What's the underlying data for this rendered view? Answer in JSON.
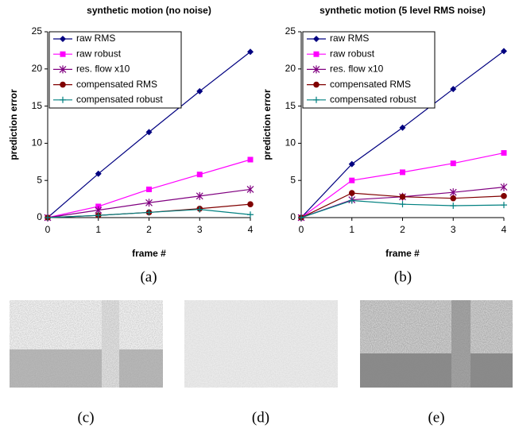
{
  "chart_data": [
    {
      "type": "line",
      "title": "synthetic motion (no noise)",
      "x_label": "frame #",
      "y_label": "prediction error",
      "x": [
        0,
        1,
        2,
        3,
        4
      ],
      "xlim": [
        0,
        4
      ],
      "xticks": [
        0,
        1,
        2,
        3,
        4
      ],
      "ylim": [
        0,
        25
      ],
      "yticks": [
        0,
        5,
        10,
        15,
        20,
        25
      ],
      "grid": false,
      "legend": "upper left",
      "series": [
        {
          "name": "raw RMS",
          "color": "#000080",
          "marker": "diamond",
          "values": [
            0,
            5.9,
            11.5,
            17.0,
            22.3
          ]
        },
        {
          "name": "raw robust",
          "color": "#ff00ff",
          "marker": "square",
          "values": [
            0,
            1.5,
            3.8,
            5.8,
            7.8
          ]
        },
        {
          "name": "res. flow x10",
          "color": "#800080",
          "marker": "star",
          "values": [
            0,
            1.0,
            2.0,
            2.9,
            3.8
          ]
        },
        {
          "name": "compensated RMS",
          "color": "#800000",
          "marker": "circle",
          "values": [
            0,
            0.3,
            0.7,
            1.2,
            1.8
          ]
        },
        {
          "name": "compensated robust",
          "color": "#008080",
          "marker": "plus",
          "values": [
            0,
            0.3,
            0.7,
            1.1,
            0.4
          ]
        }
      ]
    },
    {
      "type": "line",
      "title": "synthetic motion (5 level RMS noise)",
      "x_label": "frame #",
      "y_label": "prediction error",
      "x": [
        0,
        1,
        2,
        3,
        4
      ],
      "xlim": [
        0,
        4
      ],
      "xticks": [
        0,
        1,
        2,
        3,
        4
      ],
      "ylim": [
        0,
        25
      ],
      "yticks": [
        0,
        5,
        10,
        15,
        20,
        25
      ],
      "grid": false,
      "legend": "upper left",
      "series": [
        {
          "name": "raw RMS",
          "color": "#000080",
          "marker": "diamond",
          "values": [
            0,
            7.2,
            12.1,
            17.3,
            22.4
          ]
        },
        {
          "name": "raw robust",
          "color": "#ff00ff",
          "marker": "square",
          "values": [
            0,
            5.0,
            6.1,
            7.3,
            8.7
          ]
        },
        {
          "name": "res. flow x10",
          "color": "#800080",
          "marker": "star",
          "values": [
            0,
            2.4,
            2.8,
            3.4,
            4.1
          ]
        },
        {
          "name": "compensated RMS",
          "color": "#800000",
          "marker": "circle",
          "values": [
            0,
            3.3,
            2.8,
            2.6,
            2.9
          ]
        },
        {
          "name": "compensated robust",
          "color": "#008080",
          "marker": "plus",
          "values": [
            0,
            2.3,
            1.8,
            1.6,
            1.7
          ]
        }
      ]
    }
  ],
  "captions": [
    "(a)",
    "(b)",
    "(c)",
    "(d)",
    "(e)"
  ]
}
